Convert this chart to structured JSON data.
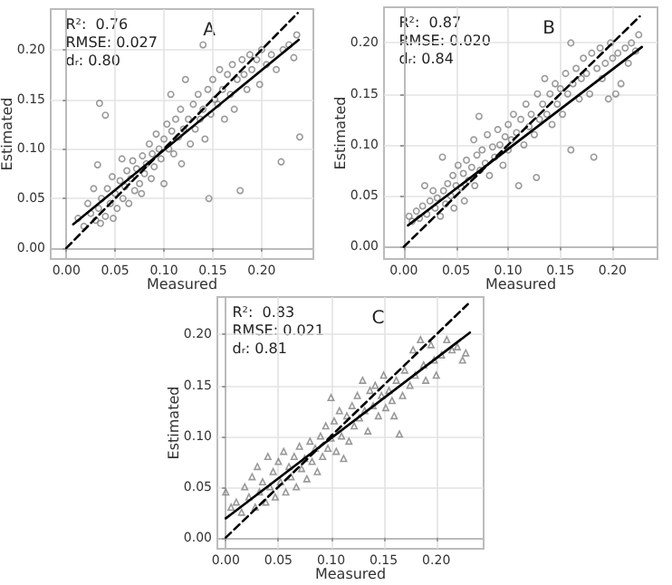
{
  "chart_data": [
    {
      "type": "scatter",
      "title": "A",
      "annotations": [
        "R²:  0.76",
        "RMSE: 0.027",
        "dᵣ: 0.80"
      ],
      "xlabel": "Measured",
      "ylabel": "Estimated",
      "xlim": [
        -0.016,
        0.253
      ],
      "ylim": [
        -0.011,
        0.241
      ],
      "xticks": [
        {
          "value": 0,
          "label": "0.00"
        },
        {
          "value": 0.05,
          "label": "0.05"
        },
        {
          "value": 0.1,
          "label": "0.10"
        },
        {
          "value": 0.15,
          "label": "0.15"
        },
        {
          "value": 0.2,
          "label": "0.20"
        }
      ],
      "yticks": [
        {
          "value": 0,
          "label": "0.00"
        },
        {
          "value": 0.05,
          "label": "0.05"
        },
        {
          "value": 0.1,
          "label": "0.10"
        },
        {
          "value": 0.15,
          "label": "0.15"
        },
        {
          "value": 0.2,
          "label": "0.20"
        }
      ],
      "grid": true,
      "marker": "circle",
      "series": [
        {
          "color": "#808080",
          "x": [
            0.012,
            0.018,
            0.022,
            0.025,
            0.028,
            0.03,
            0.032,
            0.033,
            0.035,
            0.036,
            0.034,
            0.04,
            0.04,
            0.042,
            0.045,
            0.047,
            0.048,
            0.05,
            0.052,
            0.055,
            0.057,
            0.058,
            0.06,
            0.062,
            0.064,
            0.066,
            0.068,
            0.07,
            0.072,
            0.075,
            0.077,
            0.078,
            0.08,
            0.082,
            0.085,
            0.087,
            0.088,
            0.09,
            0.092,
            0.095,
            0.097,
            0.1,
            0.1,
            0.103,
            0.105,
            0.107,
            0.108,
            0.11,
            0.112,
            0.115,
            0.117,
            0.118,
            0.12,
            0.122,
            0.125,
            0.127,
            0.13,
            0.132,
            0.135,
            0.137,
            0.14,
            0.14,
            0.142,
            0.145,
            0.146,
            0.148,
            0.15,
            0.152,
            0.155,
            0.157,
            0.16,
            0.162,
            0.165,
            0.168,
            0.17,
            0.172,
            0.175,
            0.178,
            0.18,
            0.182,
            0.185,
            0.188,
            0.19,
            0.195,
            0.198,
            0.2,
            0.205,
            0.21,
            0.215,
            0.22,
            0.222,
            0.228,
            0.233,
            0.239,
            0.236
          ],
          "values": [
            0.03,
            0.022,
            0.045,
            0.035,
            0.06,
            0.028,
            0.084,
            0.04,
            0.025,
            0.05,
            0.146,
            0.134,
            0.032,
            0.06,
            0.045,
            0.072,
            0.03,
            0.055,
            0.04,
            0.068,
            0.09,
            0.05,
            0.062,
            0.078,
            0.045,
            0.07,
            0.088,
            0.058,
            0.08,
            0.065,
            0.055,
            0.093,
            0.075,
            0.085,
            0.105,
            0.07,
            0.095,
            0.082,
            0.115,
            0.1,
            0.09,
            0.11,
            0.065,
            0.125,
            0.1,
            0.155,
            0.118,
            0.095,
            0.13,
            0.112,
            0.14,
            0.085,
            0.12,
            0.17,
            0.13,
            0.105,
            0.145,
            0.12,
            0.155,
            0.13,
            0.205,
            0.14,
            0.11,
            0.16,
            0.05,
            0.135,
            0.17,
            0.15,
            0.145,
            0.18,
            0.16,
            0.13,
            0.175,
            0.155,
            0.185,
            0.14,
            0.17,
            0.058,
            0.19,
            0.175,
            0.16,
            0.195,
            0.18,
            0.19,
            0.165,
            0.2,
            0.185,
            0.195,
            0.18,
            0.087,
            0.2,
            0.205,
            0.192,
            0.112,
            0.215
          ]
        },
        {
          "type": "line",
          "color": "#000000",
          "line_style": "dashed",
          "marker": "none",
          "x": [
            0,
            0.237
          ],
          "values": [
            0,
            0.237
          ]
        },
        {
          "type": "line",
          "color": "#000000",
          "line_style": "solid",
          "marker": "none",
          "x": [
            0.007,
            0.238
          ],
          "values": [
            0.024,
            0.21
          ]
        }
      ]
    },
    {
      "type": "scatter",
      "title": "B",
      "annotations": [
        "R²:  0.87",
        "RMSE: 0.020",
        "dᵣ: 0.84"
      ],
      "xlabel": "Measured",
      "ylabel": "Estimated",
      "xlim": [
        -0.019,
        0.243
      ],
      "ylim": [
        -0.012,
        0.235
      ],
      "xticks": [
        {
          "value": 0,
          "label": "0.00"
        },
        {
          "value": 0.05,
          "label": "0.05"
        },
        {
          "value": 0.1,
          "label": "0.10"
        },
        {
          "value": 0.15,
          "label": "0.15"
        },
        {
          "value": 0.2,
          "label": "0.20"
        }
      ],
      "yticks": [
        {
          "value": 0,
          "label": "0.00"
        },
        {
          "value": 0.05,
          "label": "0.05"
        },
        {
          "value": 0.1,
          "label": "0.10"
        },
        {
          "value": 0.15,
          "label": "0.15"
        },
        {
          "value": 0.2,
          "label": "0.20"
        }
      ],
      "grid": true,
      "marker": "circle",
      "series": [
        {
          "color": "#808080",
          "x": [
            0.005,
            0.008,
            0.012,
            0.015,
            0.018,
            0.02,
            0.022,
            0.025,
            0.028,
            0.03,
            0.032,
            0.035,
            0.037,
            0.038,
            0.04,
            0.042,
            0.045,
            0.047,
            0.048,
            0.05,
            0.052,
            0.055,
            0.057,
            0.058,
            0.06,
            0.062,
            0.065,
            0.067,
            0.068,
            0.07,
            0.072,
            0.073,
            0.075,
            0.078,
            0.08,
            0.082,
            0.085,
            0.087,
            0.09,
            0.092,
            0.095,
            0.097,
            0.1,
            0.1,
            0.103,
            0.105,
            0.108,
            0.11,
            0.112,
            0.115,
            0.117,
            0.12,
            0.122,
            0.125,
            0.127,
            0.128,
            0.13,
            0.133,
            0.135,
            0.137,
            0.14,
            0.142,
            0.145,
            0.147,
            0.15,
            0.152,
            0.155,
            0.157,
            0.16,
            0.16,
            0.162,
            0.165,
            0.168,
            0.17,
            0.172,
            0.175,
            0.178,
            0.18,
            0.182,
            0.185,
            0.188,
            0.19,
            0.193,
            0.196,
            0.198,
            0.2,
            0.203,
            0.205,
            0.208,
            0.212,
            0.215,
            0.218,
            0.222,
            0.225
          ],
          "values": [
            0.03,
            0.025,
            0.035,
            0.028,
            0.04,
            0.06,
            0.032,
            0.045,
            0.055,
            0.038,
            0.048,
            0.03,
            0.088,
            0.055,
            0.042,
            0.062,
            0.05,
            0.07,
            0.038,
            0.06,
            0.08,
            0.058,
            0.072,
            0.045,
            0.085,
            0.065,
            0.078,
            0.105,
            0.06,
            0.09,
            0.128,
            0.075,
            0.095,
            0.082,
            0.11,
            0.07,
            0.098,
            0.088,
            0.115,
            0.1,
            0.08,
            0.108,
            0.12,
            0.095,
            0.105,
            0.13,
            0.112,
            0.06,
            0.125,
            0.1,
            0.14,
            0.118,
            0.13,
            0.11,
            0.068,
            0.15,
            0.125,
            0.14,
            0.165,
            0.13,
            0.15,
            0.12,
            0.16,
            0.14,
            0.155,
            0.13,
            0.17,
            0.15,
            0.095,
            0.2,
            0.16,
            0.175,
            0.145,
            0.165,
            0.185,
            0.17,
            0.15,
            0.19,
            0.088,
            0.175,
            0.195,
            0.165,
            0.18,
            0.145,
            0.2,
            0.185,
            0.15,
            0.19,
            0.16,
            0.195,
            0.18,
            0.2,
            0.192,
            0.208
          ]
        },
        {
          "type": "line",
          "color": "#000000",
          "line_style": "dashed",
          "marker": "none",
          "x": [
            0,
            0.226
          ],
          "values": [
            0,
            0.226
          ]
        },
        {
          "type": "line",
          "color": "#000000",
          "line_style": "solid",
          "marker": "none",
          "x": [
            0.004,
            0.228
          ],
          "values": [
            0.021,
            0.196
          ]
        }
      ]
    },
    {
      "type": "scatter",
      "title": "C",
      "annotations": [
        "R²:  0.83",
        "RMSE: 0.021",
        "dᵣ: 0.81"
      ],
      "xlabel": "Measured",
      "ylabel": "Estimated",
      "xlim": [
        -0.008,
        0.245
      ],
      "ylim": [
        -0.011,
        0.237
      ],
      "xticks": [
        {
          "value": 0,
          "label": "0.00"
        },
        {
          "value": 0.05,
          "label": "0.05"
        },
        {
          "value": 0.1,
          "label": "0.10"
        },
        {
          "value": 0.15,
          "label": "0.15"
        },
        {
          "value": 0.2,
          "label": "0.20"
        }
      ],
      "yticks": [
        {
          "value": 0,
          "label": "0.00"
        },
        {
          "value": 0.05,
          "label": "0.05"
        },
        {
          "value": 0.1,
          "label": "0.10"
        },
        {
          "value": 0.15,
          "label": "0.15"
        },
        {
          "value": 0.2,
          "label": "0.20"
        }
      ],
      "grid": true,
      "marker": "triangle",
      "series": [
        {
          "color": "#808080",
          "x": [
            0.0,
            0.005,
            0.01,
            0.015,
            0.018,
            0.022,
            0.025,
            0.028,
            0.03,
            0.032,
            0.035,
            0.038,
            0.04,
            0.042,
            0.045,
            0.047,
            0.05,
            0.052,
            0.055,
            0.057,
            0.06,
            0.062,
            0.065,
            0.067,
            0.07,
            0.072,
            0.075,
            0.077,
            0.08,
            0.082,
            0.085,
            0.087,
            0.09,
            0.092,
            0.095,
            0.097,
            0.1,
            0.1,
            0.103,
            0.105,
            0.108,
            0.11,
            0.112,
            0.115,
            0.117,
            0.12,
            0.122,
            0.125,
            0.127,
            0.13,
            0.132,
            0.135,
            0.137,
            0.14,
            0.142,
            0.145,
            0.148,
            0.15,
            0.152,
            0.155,
            0.158,
            0.16,
            0.162,
            0.165,
            0.168,
            0.17,
            0.175,
            0.178,
            0.18,
            0.185,
            0.188,
            0.19,
            0.195,
            0.198,
            0.2,
            0.205,
            0.21,
            0.215,
            0.22,
            0.225,
            0.228
          ],
          "values": [
            0.045,
            0.03,
            0.035,
            0.025,
            0.05,
            0.04,
            0.06,
            0.03,
            0.07,
            0.045,
            0.055,
            0.035,
            0.08,
            0.05,
            0.065,
            0.04,
            0.075,
            0.055,
            0.085,
            0.045,
            0.07,
            0.06,
            0.08,
            0.05,
            0.09,
            0.068,
            0.078,
            0.058,
            0.095,
            0.075,
            0.088,
            0.065,
            0.1,
            0.08,
            0.11,
            0.088,
            0.138,
            0.098,
            0.115,
            0.085,
            0.125,
            0.1,
            0.078,
            0.12,
            0.095,
            0.13,
            0.11,
            0.14,
            0.118,
            0.155,
            0.125,
            0.105,
            0.145,
            0.13,
            0.15,
            0.12,
            0.14,
            0.16,
            0.128,
            0.145,
            0.135,
            0.12,
            0.155,
            0.102,
            0.14,
            0.165,
            0.15,
            0.185,
            0.16,
            0.195,
            0.17,
            0.155,
            0.19,
            0.175,
            0.16,
            0.18,
            0.195,
            0.185,
            0.188,
            0.175,
            0.182
          ]
        },
        {
          "type": "line",
          "color": "#000000",
          "line_style": "dashed",
          "marker": "none",
          "x": [
            0,
            0.23
          ],
          "values": [
            0,
            0.23
          ]
        },
        {
          "type": "line",
          "color": "#000000",
          "line_style": "solid",
          "marker": "none",
          "x": [
            0,
            0.232
          ],
          "values": [
            0.019,
            0.202
          ]
        }
      ]
    }
  ]
}
